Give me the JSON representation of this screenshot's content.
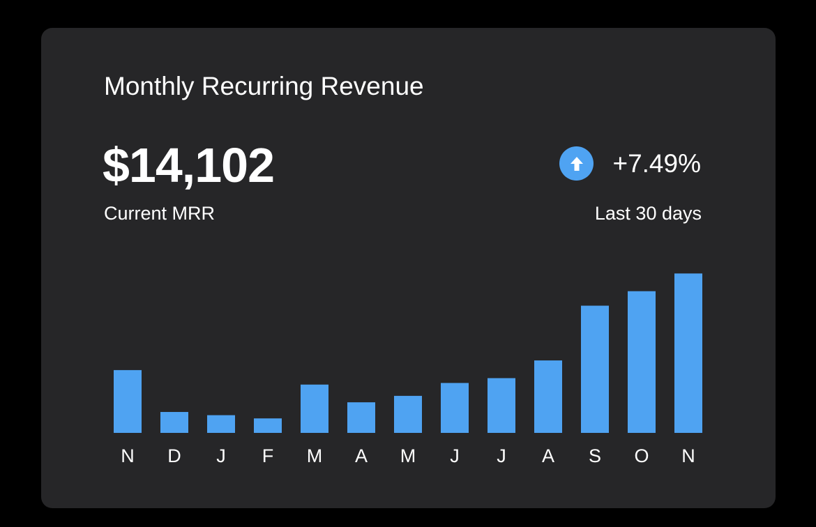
{
  "card": {
    "title": "Monthly Recurring Revenue",
    "value": "$14,102",
    "value_label": "Current MRR",
    "change": "+7.49%",
    "change_icon": "arrow-up-icon",
    "period": "Last 30 days"
  },
  "colors": {
    "background": "#000000",
    "card": "#262628",
    "accent": "#4fa3f2",
    "text": "#ffffff"
  },
  "chart_data": {
    "type": "bar",
    "title": "",
    "xlabel": "",
    "ylabel": "",
    "categories": [
      "N",
      "D",
      "J",
      "F",
      "M",
      "A",
      "M",
      "J",
      "J",
      "A",
      "S",
      "O",
      "N"
    ],
    "values": [
      39,
      13,
      11,
      9,
      30,
      19,
      23,
      31,
      34,
      45,
      79,
      88,
      99
    ],
    "ylim": [
      0,
      100
    ],
    "grid": false,
    "legend": "none"
  }
}
